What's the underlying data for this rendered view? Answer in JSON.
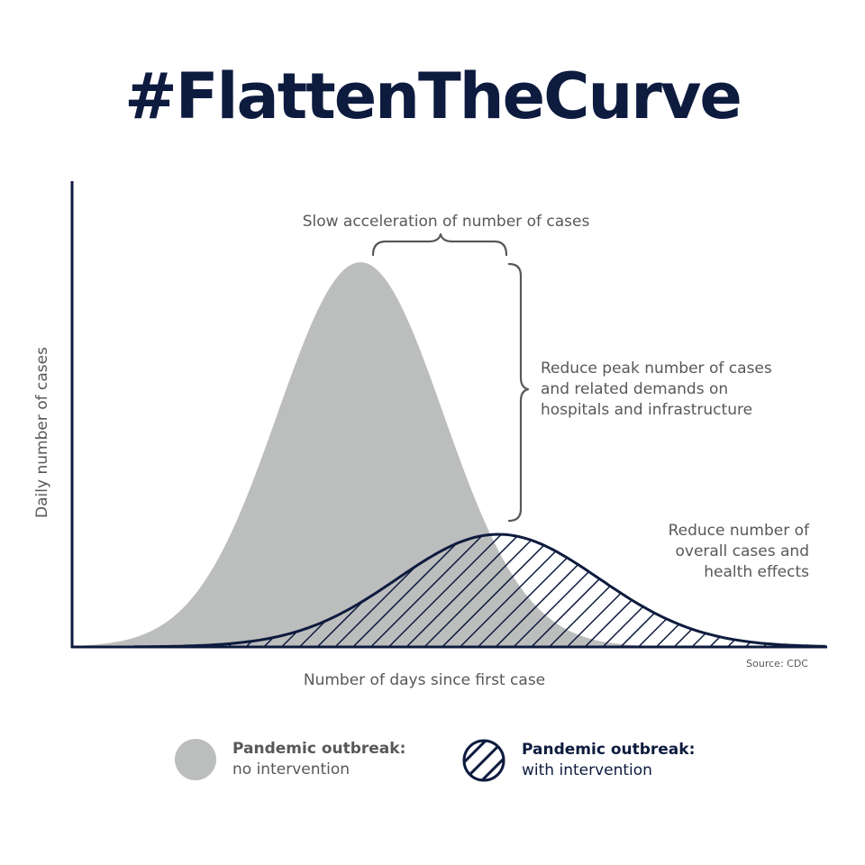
{
  "title": "#FlattenTheCurve",
  "colors": {
    "navy": "#0d1b3e",
    "gray_fill": "#bcbdbd",
    "text_gray": "#58585a",
    "background": "#ffffff"
  },
  "axes": {
    "ylabel": "Daily number of cases",
    "xlabel": "Number of days since first case"
  },
  "annotations": {
    "slow_acceleration": "Slow acceleration of number of cases",
    "reduce_peak": [
      "Reduce peak number of cases",
      "and related demands on",
      "hospitals and infrastructure"
    ],
    "reduce_overall": [
      "Reduce number of",
      "overall cases and",
      "health effects"
    ],
    "source": "Source: CDC"
  },
  "legend": [
    {
      "title": "Pandemic outbreak:",
      "subtitle": "no intervention",
      "style": "gray-fill"
    },
    {
      "title": "Pandemic outbreak:",
      "subtitle": "with intervention",
      "style": "navy-hatched"
    }
  ]
}
